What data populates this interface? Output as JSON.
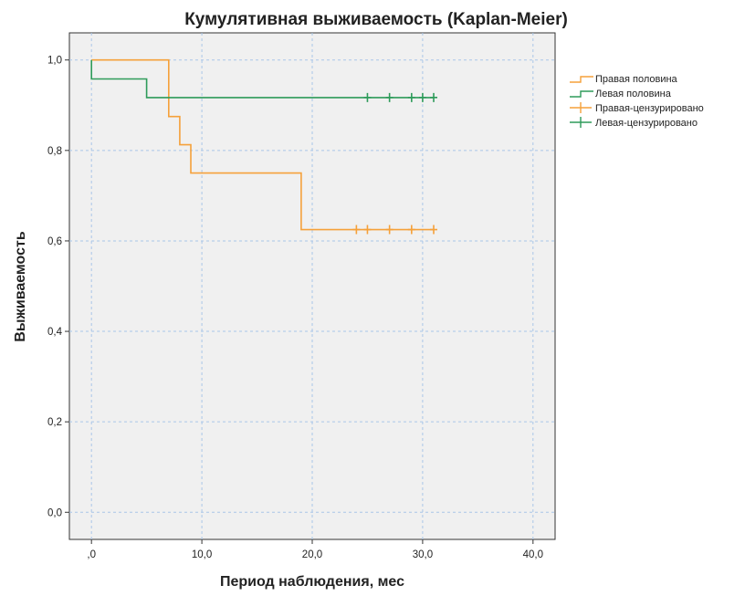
{
  "chart_data": {
    "type": "line",
    "title": "Кумулятивная выживаемость (Kaplan-Meier)",
    "xlabel": "Период наблюдения, мес",
    "ylabel": "Выживаемость",
    "xlim": [
      -2,
      42
    ],
    "ylim": [
      -0.06,
      1.06
    ],
    "x_ticks": [
      0,
      10,
      20,
      30,
      40
    ],
    "x_tick_labels": [
      ",0",
      "10,0",
      "20,0",
      "30,0",
      "40,0"
    ],
    "y_ticks": [
      0,
      0.2,
      0.4,
      0.6,
      0.8,
      1.0
    ],
    "y_tick_labels": [
      "0,0",
      "0,2",
      "0,4",
      "0,6",
      "0,8",
      "1,0"
    ],
    "grid": true,
    "background_color": "#f0f0f0",
    "legend_position": "right",
    "series": [
      {
        "name": "Правая половина",
        "color": "#f5a13a",
        "step_points": [
          [
            0,
            1.0
          ],
          [
            7,
            1.0
          ],
          [
            7,
            0.875
          ],
          [
            8,
            0.875
          ],
          [
            8,
            0.8125
          ],
          [
            9,
            0.8125
          ],
          [
            9,
            0.75
          ],
          [
            19,
            0.75
          ],
          [
            19,
            0.625
          ],
          [
            31,
            0.625
          ]
        ],
        "censored_name": "Правая-цензурировано",
        "censored": [
          [
            24,
            0.625
          ],
          [
            25,
            0.625
          ],
          [
            27,
            0.625
          ],
          [
            29,
            0.625
          ],
          [
            31,
            0.625
          ]
        ]
      },
      {
        "name": "Левая половина",
        "color": "#2e9b5a",
        "step_points": [
          [
            0,
            1.0
          ],
          [
            0,
            0.958
          ],
          [
            5,
            0.958
          ],
          [
            5,
            0.917
          ],
          [
            31,
            0.917
          ]
        ],
        "censored_name": "Левая-цензурировано",
        "censored": [
          [
            25,
            0.917
          ],
          [
            27,
            0.917
          ],
          [
            29,
            0.917
          ],
          [
            30,
            0.917
          ],
          [
            31,
            0.917
          ]
        ]
      }
    ]
  }
}
